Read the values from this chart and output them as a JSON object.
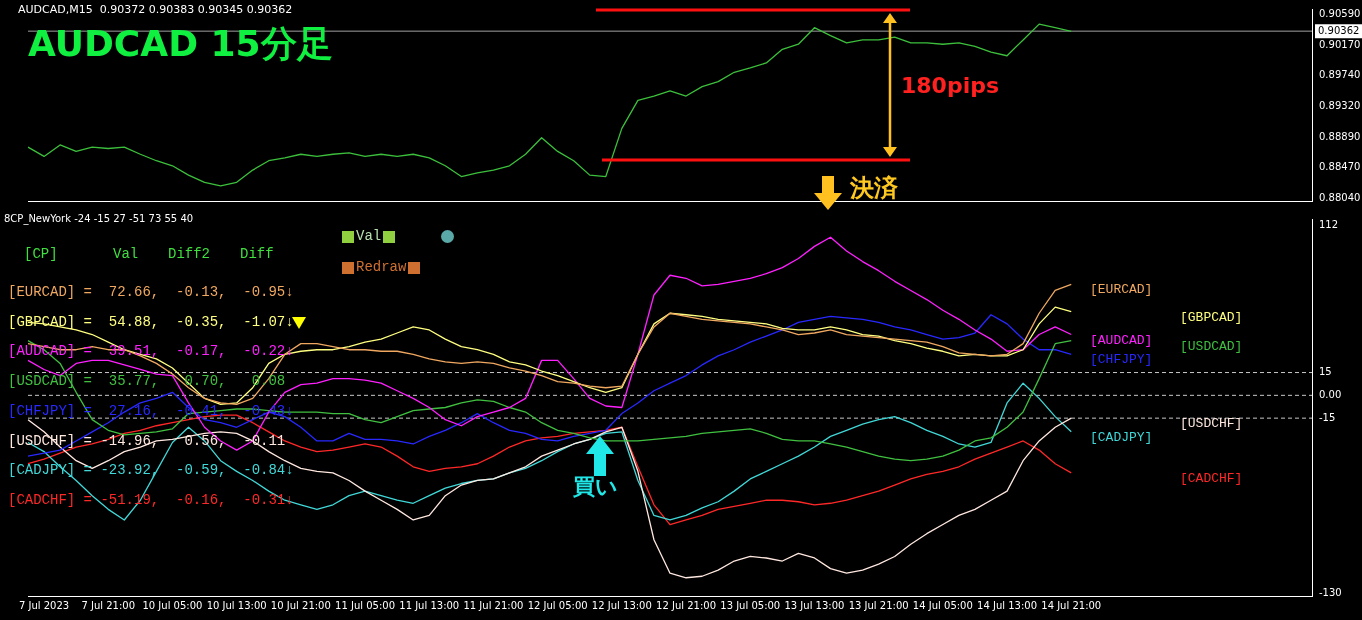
{
  "chart_data": [
    {
      "type": "line",
      "title": "AUDCAD 15分足",
      "subtitle": "AUDCAD,M15  0.90372 0.90383 0.90345 0.90362",
      "tick_labels": "y",
      "categories": [
        null,
        null,
        null,
        null,
        null,
        null,
        null,
        null,
        null,
        null,
        null,
        null,
        null,
        null,
        null,
        null,
        null,
        null,
        null,
        null,
        null,
        null,
        null,
        null,
        null,
        null,
        null,
        null,
        null,
        null,
        null,
        null,
        null,
        null,
        null,
        null,
        null,
        null,
        null,
        null,
        null,
        null,
        null,
        null,
        null,
        null,
        null,
        null,
        null,
        null,
        null,
        null,
        null,
        null,
        null,
        null,
        null,
        null,
        null,
        null,
        null,
        null,
        null,
        null,
        null,
        null,
        null,
        null,
        null,
        null,
        null,
        null,
        null,
        null,
        null,
        null,
        null,
        null,
        null,
        null,
        null
      ],
      "series": [
        {
          "color": "#3cc03c",
          "values": [
            0.8875,
            0.8862,
            0.8878,
            0.8869,
            0.8875,
            0.8873,
            0.8875,
            0.8865,
            0.8856,
            0.8849,
            0.8836,
            0.8826,
            0.8821,
            0.8826,
            0.8843,
            0.8856,
            0.886,
            0.8865,
            0.8862,
            0.8865,
            0.8867,
            0.8862,
            0.8865,
            0.8862,
            0.8865,
            0.886,
            0.8849,
            0.8834,
            0.8839,
            0.8843,
            0.8849,
            0.8865,
            0.8888,
            0.8869,
            0.8856,
            0.8836,
            0.8834,
            0.8901,
            0.894,
            0.8946,
            0.8953,
            0.8946,
            0.8959,
            0.8966,
            0.8979,
            0.8985,
            0.8992,
            0.9011,
            0.9018,
            0.9041,
            0.903,
            0.902,
            0.9024,
            0.9024,
            0.9028,
            0.902,
            0.902,
            0.9018,
            0.902,
            0.9015,
            0.9007,
            0.9002,
            0.9024,
            0.9046,
            0.9041,
            0.9036,
            null,
            null,
            null,
            null,
            null,
            null,
            null,
            null,
            null,
            null,
            null,
            null,
            null,
            null,
            null
          ]
        }
      ],
      "ylim": [
        0.88,
        0.9067
      ],
      "yticks": [
        {
          "value": 0.8804,
          "label": "0.88040"
        },
        {
          "value": 0.8847,
          "label": "0.88470"
        },
        {
          "value": 0.8889,
          "label": "0.88890"
        },
        {
          "value": 0.8932,
          "label": "0.89320"
        },
        {
          "value": 0.8974,
          "label": "0.89740"
        },
        {
          "value": 0.9017,
          "label": "0.90170"
        },
        {
          "value": 0.9059,
          "label": "0.90590"
        }
      ],
      "ref_lines": [
        {
          "axis": "y",
          "value": 0.90362,
          "label": "0.90362",
          "color": "#a0a0a0"
        }
      ],
      "annotations": [
        "180pips",
        "決済"
      ]
    },
    {
      "type": "line",
      "subtitle": "8CP_NewYork -24 -15 27 -51 73 55 40",
      "categories": [
        null,
        "7 Jul 2023",
        null,
        null,
        null,
        "7 Jul 21:00",
        null,
        null,
        null,
        "10 Jul 05:00",
        null,
        null,
        null,
        "10 Jul 13:00",
        null,
        null,
        null,
        "10 Jul 21:00",
        null,
        null,
        null,
        "11 Jul 05:00",
        null,
        null,
        null,
        "11 Jul 13:00",
        null,
        null,
        null,
        "11 Jul 21:00",
        null,
        null,
        null,
        "12 Jul 05:00",
        null,
        null,
        null,
        "12 Jul 13:00",
        null,
        null,
        null,
        "12 Jul 21:00",
        null,
        null,
        null,
        "13 Jul 05:00",
        null,
        null,
        null,
        "13 Jul 13:00",
        null,
        null,
        null,
        "13 Jul 21:00",
        null,
        null,
        null,
        "14 Jul 05:00",
        null,
        null,
        null,
        "14 Jul 13:00",
        null,
        null,
        null,
        "14 Jul 21:00",
        null,
        null,
        null,
        null,
        null,
        null,
        null,
        null,
        null,
        null,
        null,
        null,
        null,
        null,
        null
      ],
      "series": [
        {
          "name": "[EURCAD]",
          "color": "#f0a860",
          "values": [
            34,
            32,
            30,
            30,
            32,
            30,
            30,
            26,
            21,
            14,
            5,
            -2,
            -5,
            -6,
            -2,
            11,
            27,
            34,
            34,
            32,
            30,
            30,
            29,
            29,
            27,
            24,
            22,
            21,
            22,
            21,
            18,
            16,
            13,
            9,
            8,
            6,
            5,
            6,
            27,
            45,
            54,
            52,
            50,
            49,
            48,
            47,
            45,
            43,
            40,
            41,
            43,
            40,
            39,
            38,
            37,
            36,
            35,
            32,
            28,
            27,
            26,
            27,
            34,
            54,
            69,
            73,
            null,
            null,
            null,
            null,
            null,
            null,
            null,
            null,
            null,
            null,
            null,
            null,
            null,
            null,
            null
          ]
        },
        {
          "name": "[GBPCAD]",
          "color": "#ffff80",
          "values": [
            48,
            47,
            45,
            43,
            40,
            35,
            30,
            27,
            24,
            18,
            8,
            -2,
            -6,
            -5,
            5,
            21,
            27,
            29,
            30,
            30,
            32,
            35,
            37,
            41,
            45,
            43,
            37,
            32,
            30,
            27,
            22,
            20,
            16,
            13,
            9,
            5,
            2,
            5,
            27,
            47,
            54,
            53,
            52,
            50,
            49,
            48,
            47,
            44,
            43,
            43,
            45,
            43,
            40,
            39,
            36,
            34,
            31,
            29,
            26,
            27,
            26,
            26,
            30,
            47,
            58,
            55,
            null,
            null,
            null,
            null,
            null,
            null,
            null,
            null,
            null,
            null,
            null,
            null,
            null,
            null,
            null
          ]
        },
        {
          "name": "[AUDCAD]",
          "color": "#ff20ff",
          "values": [
            23,
            17,
            13,
            21,
            23,
            23,
            20,
            17,
            14,
            13,
            -5,
            -21,
            -30,
            -36,
            -30,
            -11,
            2,
            7,
            8,
            11,
            11,
            10,
            8,
            3,
            -2,
            -8,
            -16,
            -20,
            -14,
            -11,
            -8,
            -2,
            23,
            23,
            11,
            -2,
            -7,
            -8,
            27,
            66,
            79,
            77,
            72,
            73,
            75,
            77,
            80,
            84,
            90,
            98,
            104,
            95,
            88,
            82,
            75,
            69,
            63,
            56,
            50,
            43,
            37,
            29,
            30,
            40,
            45,
            40,
            null,
            null,
            null,
            null,
            null,
            null,
            null,
            null,
            null,
            null,
            null,
            null,
            null,
            null,
            null
          ]
        },
        {
          "name": "[USDCAD]",
          "color": "#40c040",
          "values": [
            36,
            30,
            21,
            2,
            -16,
            -23,
            -26,
            -25,
            -24,
            -22,
            -12,
            -11,
            -10,
            -9,
            -9,
            -10,
            -11,
            -11,
            -11,
            -12,
            -12,
            -16,
            -18,
            -14,
            -10,
            -9,
            -8,
            -5,
            -3,
            -4,
            -8,
            -11,
            -18,
            -23,
            -25,
            -28,
            -30,
            -30,
            -30,
            -29,
            -28,
            -27,
            -25,
            -24,
            -23,
            -22,
            -25,
            -29,
            -30,
            -30,
            -32,
            -34,
            -37,
            -40,
            -42,
            -43,
            -42,
            -40,
            -36,
            -30,
            -28,
            -21,
            -11,
            11,
            34,
            36,
            null,
            null,
            null,
            null,
            null,
            null,
            null,
            null,
            null,
            null,
            null,
            null,
            null,
            null,
            null
          ]
        },
        {
          "name": "[CHFJPY]",
          "color": "#2828ff",
          "values": [
            -40,
            -38,
            -36,
            -30,
            -24,
            -18,
            -11,
            -5,
            -2,
            2,
            -8,
            -16,
            -18,
            -21,
            -16,
            -11,
            -14,
            -21,
            -30,
            -30,
            -25,
            -29,
            -29,
            -30,
            -32,
            -27,
            -23,
            -18,
            -12,
            -18,
            -23,
            -25,
            -29,
            -30,
            -27,
            -25,
            -23,
            -12,
            -5,
            3,
            8,
            13,
            20,
            26,
            30,
            35,
            39,
            43,
            48,
            50,
            52,
            51,
            50,
            48,
            45,
            43,
            40,
            37,
            38,
            41,
            53,
            47,
            37,
            30,
            30,
            27,
            null,
            null,
            null,
            null,
            null,
            null,
            null,
            null,
            null,
            null,
            null,
            null,
            null,
            null,
            null
          ]
        },
        {
          "name": "[USDCHF]",
          "color": "#ffe8e0",
          "values": [
            -16,
            -24,
            -34,
            -43,
            -48,
            -43,
            -37,
            -34,
            -30,
            -29,
            -27,
            -25,
            -24,
            -25,
            -30,
            -37,
            -43,
            -48,
            -50,
            -51,
            -56,
            -63,
            -69,
            -75,
            -82,
            -79,
            -66,
            -59,
            -56,
            -55,
            -51,
            -47,
            -40,
            -36,
            -32,
            -29,
            -24,
            -21,
            -50,
            -95,
            -117,
            -120,
            -119,
            -115,
            -109,
            -106,
            -107,
            -109,
            -104,
            -107,
            -114,
            -117,
            -115,
            -111,
            -106,
            -98,
            -91,
            -85,
            -79,
            -75,
            -69,
            -63,
            -43,
            -30,
            -21,
            -15,
            null,
            null,
            null,
            null,
            null,
            null,
            null,
            null,
            null,
            null,
            null,
            null,
            null,
            null,
            null
          ]
        },
        {
          "name": "[CADJPY]",
          "color": "#40d8d8",
          "values": [
            -31,
            -37,
            -47,
            -56,
            -66,
            -75,
            -82,
            -69,
            -50,
            -31,
            -21,
            -30,
            -43,
            -50,
            -56,
            -63,
            -69,
            -72,
            -75,
            -72,
            -66,
            -63,
            -66,
            -69,
            -71,
            -66,
            -61,
            -58,
            -56,
            -55,
            -51,
            -48,
            -43,
            -37,
            -32,
            -29,
            -25,
            -24,
            -56,
            -79,
            -82,
            -79,
            -74,
            -70,
            -63,
            -55,
            -50,
            -45,
            -40,
            -34,
            -27,
            -23,
            -19,
            -16,
            -14,
            -18,
            -23,
            -27,
            -32,
            -34,
            -31,
            -5,
            8,
            -2,
            -14,
            -24,
            null,
            null,
            null,
            null,
            null,
            null,
            null,
            null,
            null,
            null,
            null,
            null,
            null,
            null,
            null
          ]
        },
        {
          "name": "[CADCHF]",
          "color": "#ff2828",
          "values": [
            -45,
            -42,
            -38,
            -34,
            -32,
            -29,
            -25,
            -23,
            -20,
            -18,
            -16,
            -14,
            -13,
            -13,
            -18,
            -24,
            -30,
            -34,
            -37,
            -36,
            -34,
            -32,
            -34,
            -40,
            -47,
            -50,
            -48,
            -47,
            -45,
            -40,
            -34,
            -30,
            -28,
            -27,
            -25,
            -24,
            -23,
            -21,
            -47,
            -72,
            -85,
            -82,
            -79,
            -75,
            -73,
            -71,
            -69,
            -69,
            -70,
            -72,
            -71,
            -69,
            -66,
            -63,
            -59,
            -55,
            -52,
            -50,
            -47,
            -42,
            -38,
            -34,
            -30,
            -36,
            -45,
            -51,
            null,
            null,
            null,
            null,
            null,
            null,
            null,
            null,
            null,
            null,
            null,
            null,
            null,
            null,
            null
          ]
        }
      ],
      "ylim": [
        -132,
        116
      ],
      "yticks": [
        112,
        15,
        {
          "value": 0,
          "label": "0.00"
        },
        -15,
        -130
      ],
      "ref_lines": [
        {
          "axis": "y",
          "value": 15,
          "color": "#c8c8c8",
          "line_style": "dashed"
        },
        {
          "axis": "y",
          "value": 0,
          "color": "#c8c8c8",
          "line_style": "dashed"
        },
        {
          "axis": "y",
          "value": -15,
          "color": "#c8c8c8",
          "line_style": "dashed"
        }
      ],
      "annotations": [
        "[CP]",
        "Val",
        "Diff2",
        "Diff",
        "[EURCAD] =  72.66,  -0.13,  -0.95↓",
        "[GBPCAD] =  54.88,  -0.35,  -1.07↓",
        "[AUDCAD] =  39.51,  -0.17,  -0.22↓",
        "[USDCAD] =  35.77,   0.70,   0.08",
        "[CHFJPY] =  27.16,  -0.41,  -0.43↓",
        "[USDCHF] = -14.96,   0.56,  -0.11",
        "[CADJPY] = -23.92,  -0.59,  -0.84↓",
        "[CADCHF] = -51.19,  -0.16,  -0.31↓",
        "Val",
        "Redraw",
        "買い"
      ]
    }
  ]
}
